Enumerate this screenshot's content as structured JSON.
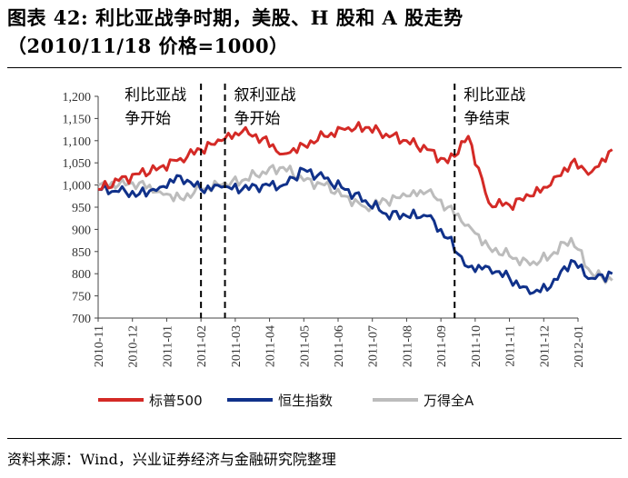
{
  "title_line1": "图表 42: 利比亚战争时期，美股、H 股和 A 股走势",
  "title_line2": "（2010/11/18 价格=1000）",
  "source": "资料来源：Wind，兴业证券经济与金融研究院整理",
  "chart_data": {
    "type": "line",
    "title": "",
    "xlabel": "",
    "ylabel": "",
    "ylim": [
      700,
      1200
    ],
    "yticks": [
      "1,200",
      "1,150",
      "1,100",
      "1,050",
      "1,000",
      "950",
      "900",
      "850",
      "800",
      "750",
      "700"
    ],
    "xticks": [
      "2010-11",
      "2010-12",
      "2011-01",
      "2011-02",
      "2011-03",
      "2011-04",
      "2011-05",
      "2011-06",
      "2011-07",
      "2011-08",
      "2011-09",
      "2011-10",
      "2011-11",
      "2011-12",
      "2012-01"
    ],
    "x": [
      0,
      0.6,
      1.2,
      1.8,
      2.4,
      3.0,
      3.6,
      4.2,
      4.8,
      5.4,
      6.0,
      6.6,
      7.2,
      7.8,
      8.4,
      9.0,
      9.6,
      10.2,
      10.8,
      11.4,
      12.0,
      12.6,
      13.2,
      13.8,
      14.4,
      15.0
    ],
    "series": [
      {
        "name": "标普500",
        "color": "#d42a26",
        "values": [
          990,
          1010,
          1025,
          1040,
          1060,
          1080,
          1100,
          1120,
          1105,
          1070,
          1090,
          1110,
          1125,
          1130,
          1115,
          1100,
          1080,
          1050,
          1110,
          960,
          955,
          975,
          1000,
          1050,
          1030,
          1080
        ]
      },
      {
        "name": "恒生指数",
        "color": "#10318a",
        "values": [
          990,
          985,
          980,
          995,
          1020,
          990,
          995,
          990,
          1000,
          1000,
          1035,
          1015,
          990,
          965,
          935,
          930,
          930,
          880,
          815,
          815,
          790,
          755,
          770,
          830,
          790,
          800
        ]
      },
      {
        "name": "万得全A",
        "color": "#bcbcbc",
        "values": [
          1000,
          1000,
          1005,
          985,
          970,
          990,
          1000,
          1010,
          1030,
          1040,
          1010,
          1000,
          975,
          950,
          965,
          975,
          985,
          950,
          910,
          860,
          840,
          820,
          840,
          880,
          800,
          785
        ]
      }
    ],
    "annotations": [
      {
        "x": 3.0,
        "line1": "利比亚战",
        "line2": "争开始"
      },
      {
        "x": 3.7,
        "line1": "叙利亚战",
        "line2": "争开始"
      },
      {
        "x": 10.4,
        "line1": "利比亚战",
        "line2": "争结束"
      }
    ],
    "legend_position": "bottom"
  }
}
